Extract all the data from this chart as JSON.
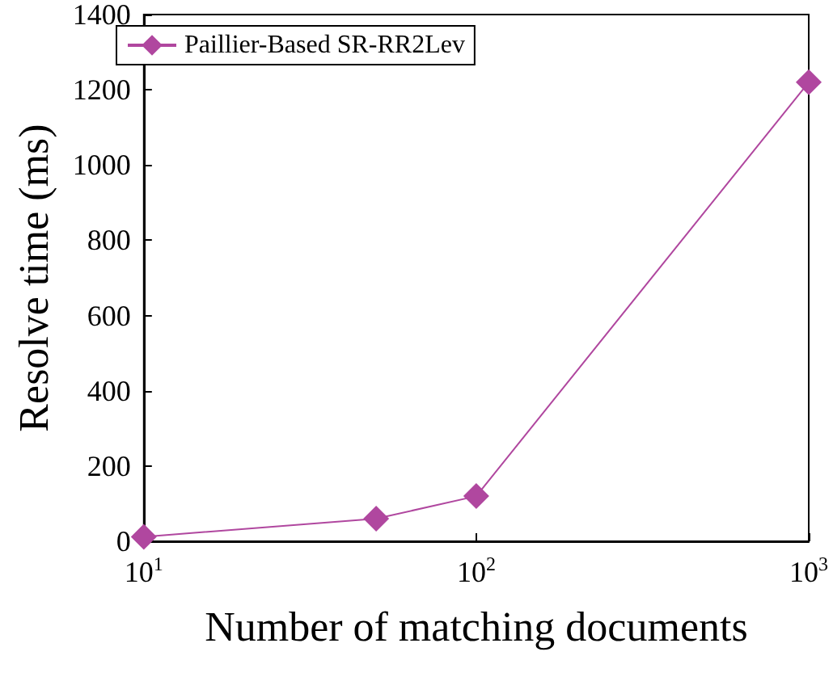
{
  "chart_data": {
    "type": "line",
    "xlabel": "Number of matching documents",
    "ylabel": "Resolve time (ms)",
    "x": [
      10,
      50,
      100,
      1000
    ],
    "series": [
      {
        "name": "Paillier-Based SR-RR2Lev",
        "color": "#b0479f",
        "values": [
          12,
          60,
          120,
          1220
        ]
      }
    ],
    "log": "x",
    "xlim": [
      10,
      1000
    ],
    "xticks": [
      {
        "value": 10,
        "label": "10$^{1}$"
      },
      {
        "value": 100,
        "label": "10$^{2}$"
      },
      {
        "value": 1000,
        "label": "10$^{3}$"
      }
    ],
    "ylim": [
      0,
      1400
    ],
    "yticks": [
      0,
      200,
      400,
      600,
      800,
      1000,
      1200,
      1400
    ],
    "marker": "diamond",
    "line_style": "solid",
    "legend": "top left",
    "grid": false
  }
}
